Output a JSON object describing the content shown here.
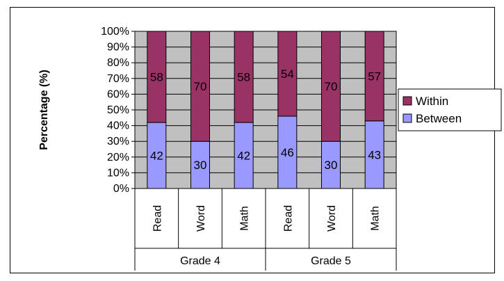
{
  "chart_data": {
    "type": "bar",
    "stacked": true,
    "groups": [
      {
        "label": "Grade 4",
        "categories": [
          "Read",
          "Word",
          "Math"
        ]
      },
      {
        "label": "Grade 5",
        "categories": [
          "Read",
          "Word",
          "Math"
        ]
      }
    ],
    "categories": [
      "Read",
      "Word",
      "Math",
      "Read",
      "Word",
      "Math"
    ],
    "series": [
      {
        "name": "Between",
        "values": [
          42,
          30,
          42,
          46,
          30,
          43
        ],
        "color": "#9999ff"
      },
      {
        "name": "Within",
        "values": [
          58,
          70,
          58,
          54,
          70,
          57
        ],
        "color": "#993366"
      }
    ],
    "ylabel": "Percentage (%)",
    "xlabel": "",
    "ylim": [
      0,
      100
    ],
    "ytick_step": 10,
    "ytick_format": "{v}%",
    "grid": true,
    "plot_background": "#c0c0c0",
    "legend_position": "right",
    "legend_order": [
      "Within",
      "Between"
    ]
  }
}
